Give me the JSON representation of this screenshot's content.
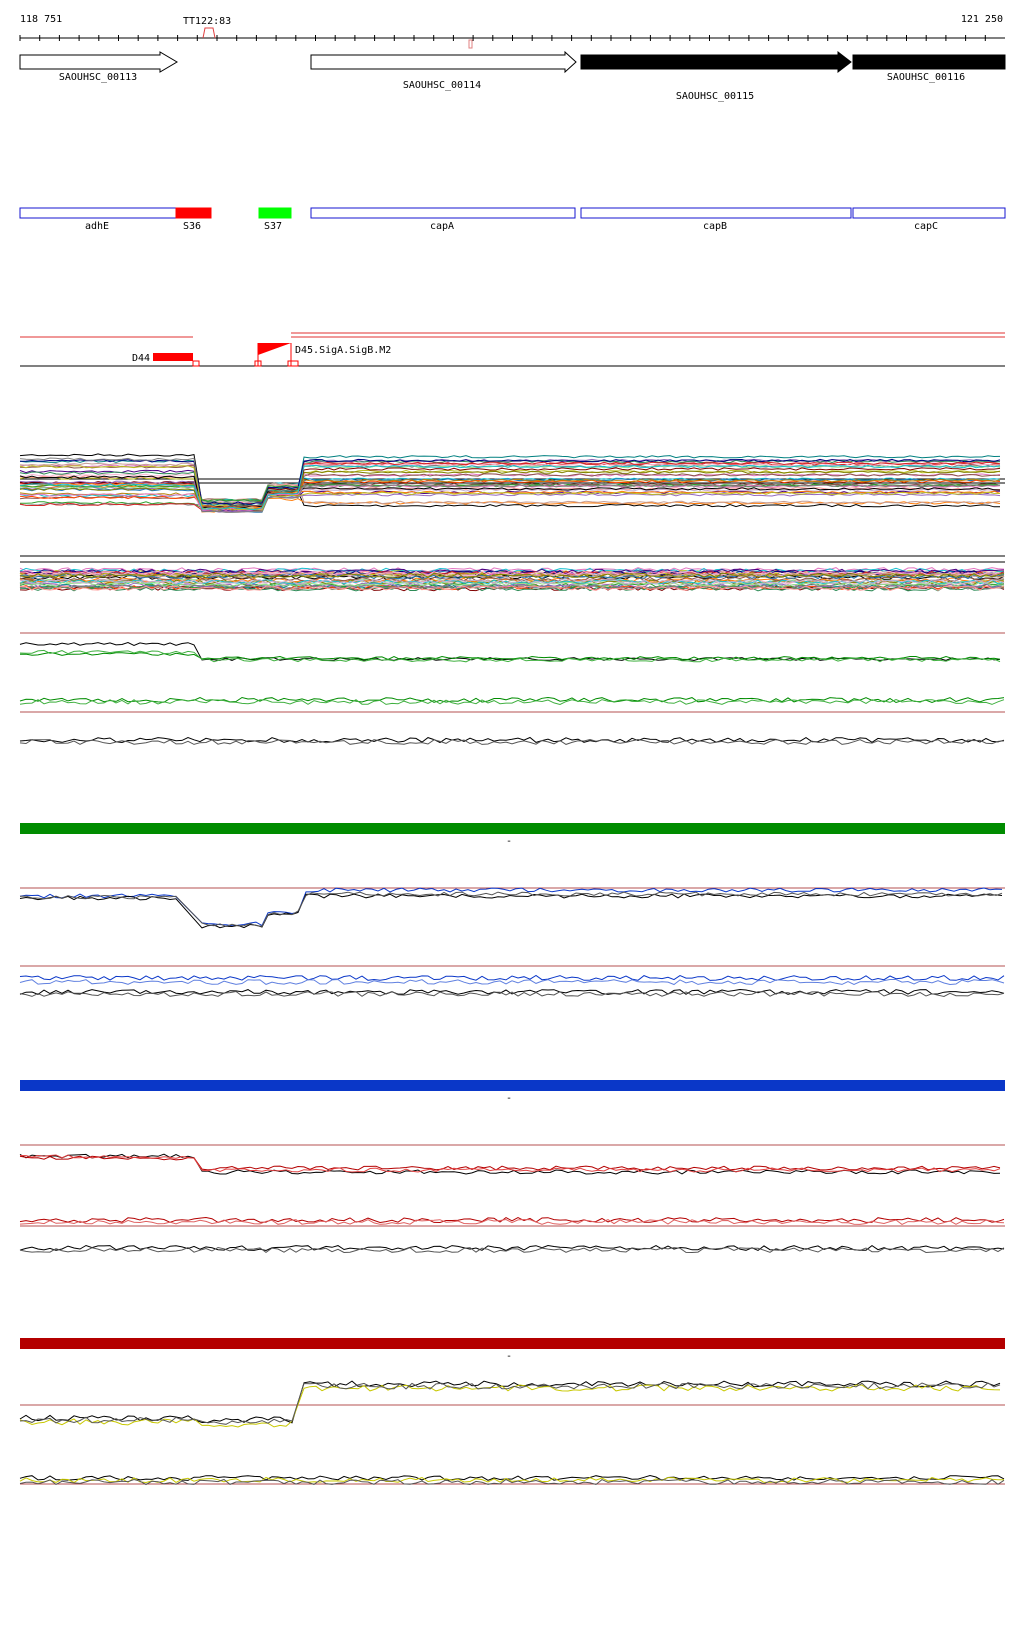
{
  "ruler": {
    "start_label": "118 751",
    "end_label": "121 250",
    "terminator_label": "TT122:83"
  },
  "genes": [
    {
      "id": "g1",
      "label": "SAOUHSC_00113",
      "filled": false
    },
    {
      "id": "g2",
      "label": "SAOUHSC_00114",
      "filled": false
    },
    {
      "id": "g3",
      "label": "SAOUHSC_00115",
      "filled": true
    },
    {
      "id": "g4",
      "label": "SAOUHSC_00116",
      "filled": true
    }
  ],
  "segments": [
    {
      "label": "adhE",
      "color": "#ffffff"
    },
    {
      "label": "S36",
      "color": "#ff0000"
    },
    {
      "label": "S37",
      "color": "#00ff00"
    },
    {
      "label": "capA",
      "color": "#ffffff"
    },
    {
      "label": "capB",
      "color": "#ffffff"
    },
    {
      "label": "capC",
      "color": "#ffffff"
    }
  ],
  "promoters": {
    "d44_label": "D44",
    "overlap_label": "D45.SigA.SigB.M2"
  },
  "panel_colors": {
    "green": "#008c00",
    "blue": "#0a37c8",
    "red": "#b40000",
    "segment_outline": "#1414d2",
    "threshold": "#b45050"
  },
  "separator_marks": [
    "-",
    "-",
    "-"
  ]
}
